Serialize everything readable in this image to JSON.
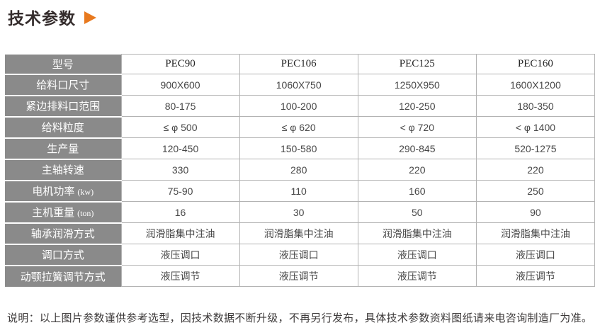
{
  "page": {
    "title": "技术参数",
    "note": "说明：以上图片参数谨供参考选型，因技术数据不断升级，不再另行发布，具体技术参数资料图纸请来电咨询制造厂为准。"
  },
  "icons": {
    "title_arrow": "right-triangle"
  },
  "colors": {
    "accent_orange": "#e8791e",
    "label_cell_gray": "#8a8a8a",
    "border_gray": "#b3b3b3",
    "title_text": "#342c2c"
  },
  "table": {
    "header": {
      "label": "型号",
      "models": [
        "PEC90",
        "PEC106",
        "PEC125",
        "PEC160"
      ]
    },
    "rows": [
      {
        "label": "给料口尺寸",
        "unit": "",
        "values": [
          "900X600",
          "1060X750",
          "1250X950",
          "1600X1200"
        ]
      },
      {
        "label": "紧边排料口范围",
        "unit": "",
        "values": [
          "80-175",
          "100-200",
          "120-250",
          "180-350"
        ]
      },
      {
        "label": "给料粒度",
        "unit": "",
        "values": [
          "≤ φ 500",
          "≤ φ 620",
          "< φ 720",
          "< φ 1400"
        ]
      },
      {
        "label": "生产量",
        "unit": "",
        "values": [
          "120-450",
          "150-580",
          "290-845",
          "520-1275"
        ]
      },
      {
        "label": "主轴转速",
        "unit": "",
        "values": [
          "330",
          "280",
          "220",
          "220"
        ]
      },
      {
        "label": "电机功率",
        "unit": "(kw)",
        "values": [
          "75-90",
          "110",
          "160",
          "250"
        ]
      },
      {
        "label": "主机重量",
        "unit": "(ton)",
        "values": [
          "16",
          "30",
          "50",
          "90"
        ]
      },
      {
        "label": "轴承润滑方式",
        "unit": "",
        "values": [
          "润滑脂集中注油",
          "润滑脂集中注油",
          "润滑脂集中注油",
          "润滑脂集中注油"
        ]
      },
      {
        "label": "调口方式",
        "unit": "",
        "values": [
          "液压调口",
          "液压调口",
          "液压调口",
          "液压调口"
        ]
      },
      {
        "label": "动颚拉簧调节方式",
        "unit": "",
        "values": [
          "液压调节",
          "液压调节",
          "液压调节",
          "液压调节"
        ]
      }
    ]
  }
}
